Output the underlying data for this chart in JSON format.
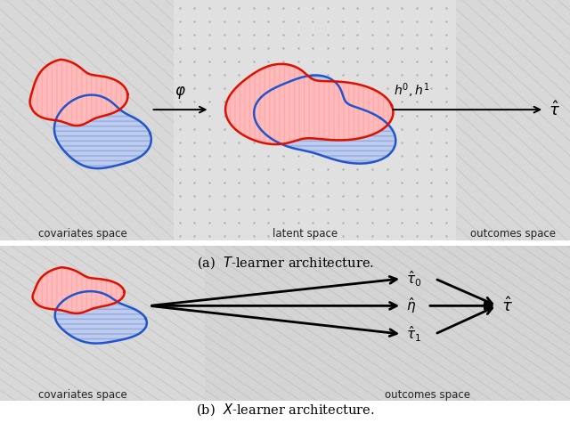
{
  "fig_width": 6.4,
  "fig_height": 4.84,
  "red_color": "#dd1100",
  "blue_color": "#2255cc",
  "red_fill": "#ffbbbb",
  "blue_fill": "#bbccee",
  "caption_a": "(a)  $T$-learner architecture.",
  "caption_b": "(b)  $X$-learner architecture.",
  "label_covariates": "covariates space",
  "label_latent": "latent space",
  "label_outcomes": "outcomes space",
  "label_covariates_b": "covariates space",
  "label_outcomes_b": "outcomes space",
  "diag_bg_color": "#d8d8d8",
  "diag_line_color": "#c0c0c0",
  "dot_bg_color": "#e2e2e2",
  "dot_color": "#bbbbbb"
}
